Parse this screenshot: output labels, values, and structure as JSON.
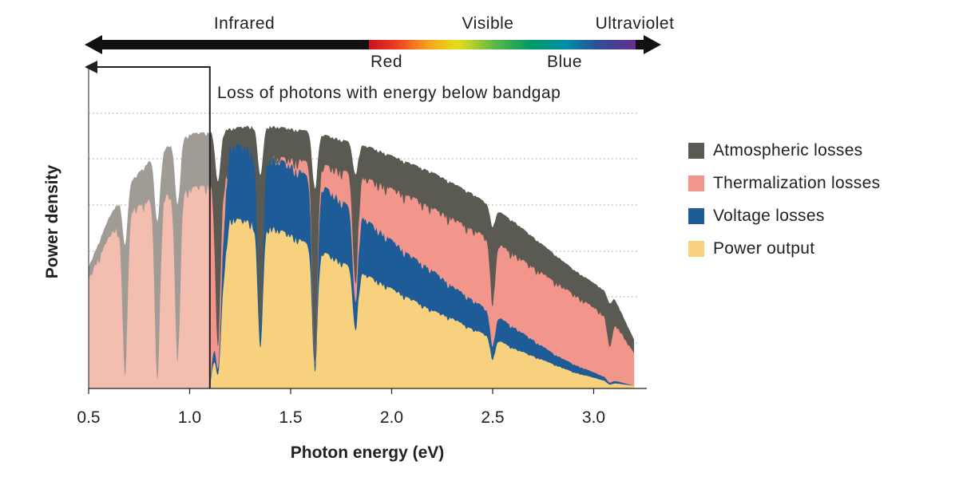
{
  "chart_data": {
    "type": "area",
    "xlabel": "Photon energy (eV)",
    "ylabel": "Power density",
    "xlim": [
      0.5,
      3.3
    ],
    "x_ticks": [
      "0.5",
      "1.0",
      "1.5",
      "2.0",
      "2.5",
      "3.0"
    ],
    "y_ticks": [],
    "grid": "dotted horizontal",
    "legend_position": "right",
    "bandgap_eV": 1.1,
    "spectrum_bar": {
      "regions": [
        "Infrared",
        "Visible",
        "Ultraviolet"
      ],
      "markers": [
        "Red",
        "Blue"
      ]
    },
    "annotation": "Loss of photons with energy below bandgap",
    "x": [
      0.5,
      0.6,
      0.7,
      0.8,
      0.9,
      1.0,
      1.1,
      1.2,
      1.3,
      1.4,
      1.5,
      1.6,
      1.7,
      1.8,
      1.9,
      2.0,
      2.1,
      2.2,
      2.3,
      2.4,
      2.5,
      2.6,
      2.7,
      2.8,
      2.9,
      3.0,
      3.1,
      3.2
    ],
    "series": [
      {
        "name": "Atmospheric losses",
        "color": "#5b5a52",
        "values": [
          45,
          63,
          76,
          84,
          90,
          94,
          95,
          96,
          97,
          97,
          96,
          95,
          93,
          91,
          89,
          86,
          83,
          80,
          76,
          72,
          67,
          62,
          56,
          50,
          44,
          39,
          34,
          18
        ]
      },
      {
        "name": "Thermalization losses",
        "color": "#f2958a",
        "values": [
          41,
          56,
          66,
          70,
          72,
          74,
          76,
          80,
          83,
          86,
          85,
          84,
          82,
          80,
          77,
          74,
          71,
          67,
          63,
          59,
          55,
          50,
          45,
          40,
          35,
          30,
          25,
          13
        ]
      },
      {
        "name": "Voltage losses",
        "color": "#1d5c96",
        "values": [
          0,
          0,
          0,
          0,
          0,
          0,
          0,
          91,
          89,
          86,
          83,
          78,
          73,
          67,
          61,
          55,
          49,
          44,
          38,
          33,
          28,
          23,
          18,
          13,
          9,
          6,
          3,
          1
        ]
      },
      {
        "name": "Power output",
        "color": "#f7d17d",
        "values": [
          0,
          0,
          0,
          0,
          0,
          0,
          0,
          63,
          62,
          60,
          57,
          53,
          49,
          45,
          41,
          37,
          33,
          29,
          26,
          22,
          19,
          15,
          12,
          9,
          6,
          4,
          2,
          1
        ]
      }
    ],
    "below_bandgap_colors": {
      "atmospheric": "#a09b94",
      "transmitted": "#f3beb0"
    },
    "y_max": 100
  }
}
